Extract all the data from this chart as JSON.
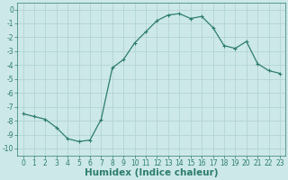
{
  "x": [
    0,
    1,
    2,
    3,
    4,
    5,
    6,
    7,
    8,
    9,
    10,
    11,
    12,
    13,
    14,
    15,
    16,
    17,
    18,
    19,
    20,
    21,
    22,
    23
  ],
  "y": [
    -7.5,
    -7.7,
    -7.9,
    -8.5,
    -9.3,
    -9.5,
    -9.4,
    -7.9,
    -4.2,
    -3.6,
    -2.4,
    -1.6,
    -0.8,
    -0.4,
    -0.3,
    -0.65,
    -0.5,
    -1.3,
    -2.6,
    -2.8,
    -2.3,
    -3.9,
    -4.4,
    -4.6
  ],
  "line_color": "#2e7d6e",
  "marker": "+",
  "bg_color": "#cce8e8",
  "grid_color": "#b0d0d0",
  "xlabel": "Humidex (Indice chaleur)",
  "xlim": [
    -0.5,
    23.5
  ],
  "ylim": [
    -10.5,
    0.5
  ],
  "yticks": [
    0,
    -1,
    -2,
    -3,
    -4,
    -5,
    -6,
    -7,
    -8,
    -9,
    -10
  ],
  "xticks": [
    0,
    1,
    2,
    3,
    4,
    5,
    6,
    7,
    8,
    9,
    10,
    11,
    12,
    13,
    14,
    15,
    16,
    17,
    18,
    19,
    20,
    21,
    22,
    23
  ],
  "tick_fontsize": 5.5,
  "xlabel_fontsize": 7.5,
  "tick_color": "#2e7d6e",
  "axes_color": "#2e7d6e"
}
